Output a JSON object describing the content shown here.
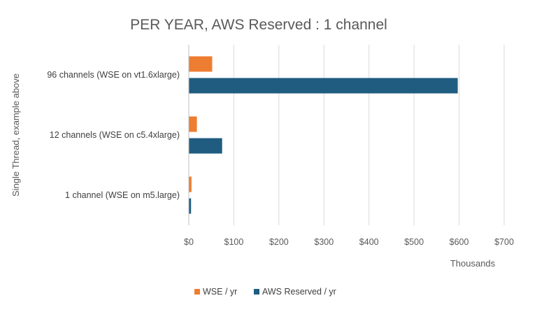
{
  "chart_data": {
    "type": "bar",
    "orientation": "horizontal",
    "title": "PER YEAR, AWS Reserved : 1 channel",
    "xlabel": "Thousands",
    "ylabel": "Single Thread, example above",
    "xlim": [
      0,
      700
    ],
    "xticks": [
      0,
      100,
      200,
      300,
      400,
      500,
      600,
      700
    ],
    "xtick_labels": [
      "$0",
      "$100",
      "$200",
      "$300",
      "$400",
      "$500",
      "$600",
      "$700"
    ],
    "categories": [
      "96 channels (WSE on vt1.6xlarge)",
      "12 channels (WSE on c5.4xlarge)",
      "1 channel (WSE on m5.large)"
    ],
    "series": [
      {
        "name": "WSE / yr",
        "color": "#ED7D31",
        "values": [
          52,
          18,
          6
        ]
      },
      {
        "name": "AWS Reserved / yr",
        "color": "#1F5C80",
        "values": [
          597,
          74,
          5
        ]
      }
    ],
    "grid": true,
    "legend_position": "bottom"
  }
}
